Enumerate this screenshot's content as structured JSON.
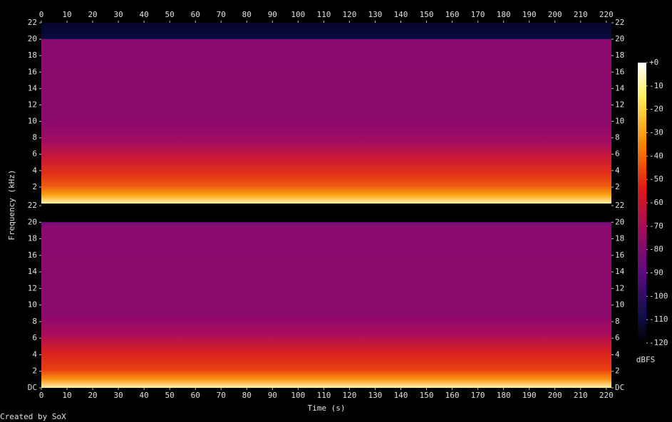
{
  "chart_data": [
    {
      "type": "spectrogram",
      "xlim": [
        0,
        222
      ],
      "xticks": [
        0,
        10,
        20,
        30,
        40,
        50,
        60,
        70,
        80,
        90,
        100,
        110,
        120,
        130,
        140,
        150,
        160,
        170,
        180,
        190,
        200,
        210,
        220
      ],
      "ylim": [
        0,
        22
      ],
      "yticks": [
        2,
        4,
        6,
        8,
        10,
        12,
        14,
        16,
        18,
        20,
        22
      ]
    },
    {
      "type": "spectrogram",
      "x_label": "Time (s)",
      "y_label": "Frequency (kHz)",
      "xlim": [
        0,
        222
      ],
      "xticks": [
        0,
        10,
        20,
        30,
        40,
        50,
        60,
        70,
        80,
        90,
        100,
        110,
        120,
        130,
        140,
        150,
        160,
        170,
        180,
        190,
        200,
        210,
        220
      ],
      "ylim": [
        0,
        22
      ],
      "yticks": [
        {
          "value": 0,
          "label": "DC"
        },
        2,
        4,
        6,
        8,
        10,
        12,
        14,
        16,
        18,
        20,
        22
      ],
      "colorbar": {
        "label": "dBFS",
        "lim": [
          -120,
          0
        ],
        "ticks": [
          {
            "value": 0,
            "label": "+0"
          },
          -10,
          -20,
          -30,
          -40,
          -50,
          -60,
          -70,
          -80,
          -90,
          -100,
          -110,
          -120
        ]
      }
    }
  ],
  "footer": "Created by SoX"
}
